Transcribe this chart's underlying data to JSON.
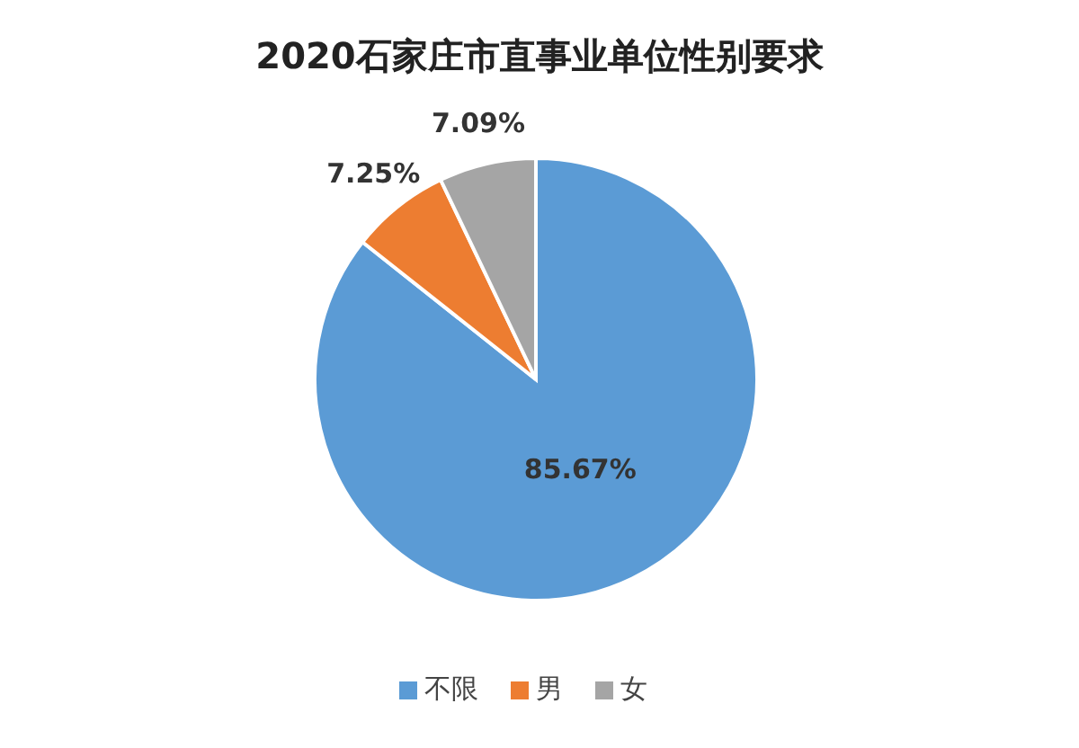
{
  "chart_data": {
    "type": "pie",
    "title": "2020石家庄市直事业单位性别要求",
    "categories": [
      "不限",
      "男",
      "女"
    ],
    "values": [
      85.67,
      7.25,
      7.09
    ],
    "colors": [
      "#5b9bd5",
      "#ed7d31",
      "#a5a5a5"
    ],
    "value_labels": [
      "85.67%",
      "7.25%",
      "7.09%"
    ],
    "legend": "bottom"
  }
}
